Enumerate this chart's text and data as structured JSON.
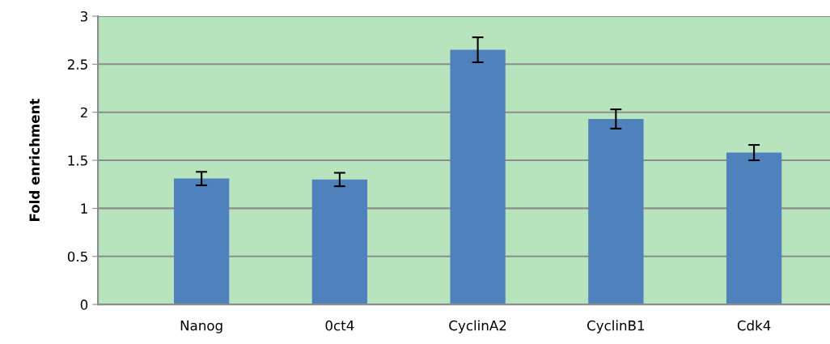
{
  "chart_data": {
    "type": "bar",
    "ylabel": "Fold enrichment",
    "categories": [
      "Nanog",
      "0ct4",
      "CyclinA2",
      "CyclinB1",
      "Cdk4"
    ],
    "values": [
      1.31,
      1.3,
      2.65,
      1.93,
      1.58
    ],
    "errors": [
      0.07,
      0.07,
      0.13,
      0.1,
      0.08
    ],
    "color": "#4f81bd",
    "ylim": [
      0,
      3
    ],
    "yticks": [
      0,
      0.5,
      1,
      1.5,
      2,
      2.5,
      3
    ],
    "grid": "y"
  }
}
